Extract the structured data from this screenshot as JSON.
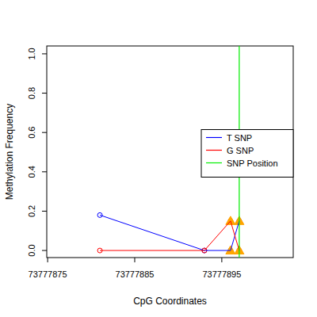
{
  "chart_data": {
    "type": "line",
    "x_label": "CpG Coordinates",
    "y_label": "Methylation Frequency",
    "x": [
      73777881,
      73777893,
      73777896,
      73777897
    ],
    "series": [
      {
        "name": "T SNP",
        "color": "#0000ff",
        "marker": "circle",
        "values": [
          0.18,
          0,
          0,
          0.15
        ]
      },
      {
        "name": "G SNP",
        "color": "#ff0000",
        "marker": "circle",
        "values": [
          0,
          0,
          0.15,
          0
        ]
      },
      {
        "type": "scatter",
        "color": "#ffa500",
        "marker": "triangle",
        "x": [
          73777896,
          73777897,
          73777896,
          73777897
        ],
        "values": [
          0.15,
          0.15,
          0,
          0
        ]
      },
      {
        "name": "SNP Position",
        "type": "vline",
        "color": "#00ee00",
        "x": [
          73777897
        ]
      }
    ],
    "xlim": [
      73777874.9,
      73777903.2
    ],
    "ylim": [
      -0.036,
      1.04
    ],
    "xticks": [
      73777875,
      73777885,
      73777895
    ],
    "yticks": [
      {
        "value": 0,
        "label": "0.0"
      },
      0.2,
      0.4,
      0.6,
      0.8,
      {
        "value": 1,
        "label": "1.0"
      }
    ],
    "legend": "right",
    "grid": false
  }
}
